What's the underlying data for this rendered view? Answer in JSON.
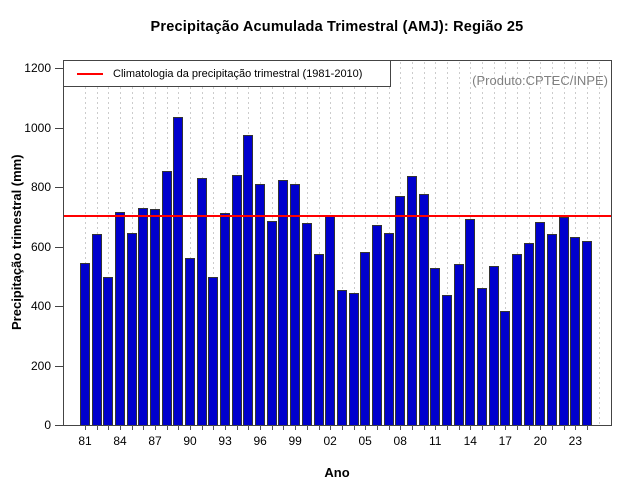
{
  "chart_data": {
    "type": "bar",
    "title": "Precipitação Acumulada Trimestral (AMJ): Região 25",
    "xlabel": "Ano",
    "ylabel": "Precipitação trimestral (mm)",
    "source_note": "(Produto:CPTEC/INPE)",
    "legend_position": "topleft",
    "legend": [
      {
        "label": "Climatologia da precipitação trimestral (1981-2010)",
        "color": "#FF0000",
        "type": "line"
      }
    ],
    "grid": "vertical-dashed",
    "ylim": [
      0,
      1200
    ],
    "yticks": [
      0,
      200,
      400,
      600,
      800,
      1000,
      1200
    ],
    "xtick_labels": [
      "81",
      "84",
      "87",
      "90",
      "93",
      "96",
      "99",
      "02",
      "05",
      "08",
      "11",
      "14",
      "17",
      "20",
      "23"
    ],
    "categories": [
      "81",
      "82",
      "83",
      "84",
      "85",
      "86",
      "87",
      "88",
      "89",
      "90",
      "91",
      "92",
      "93",
      "94",
      "95",
      "96",
      "97",
      "98",
      "99",
      "00",
      "01",
      "02",
      "03",
      "04",
      "05",
      "06",
      "07",
      "08",
      "09",
      "10",
      "11",
      "12",
      "13",
      "14",
      "15",
      "16",
      "17",
      "18",
      "19",
      "20",
      "21",
      "22",
      "23",
      "24"
    ],
    "values": [
      545,
      641,
      497,
      715,
      647,
      731,
      726,
      855,
      1034,
      563,
      831,
      497,
      713,
      841,
      974,
      809,
      686,
      822,
      809,
      680,
      574,
      701,
      455,
      445,
      583,
      672,
      646,
      771,
      836,
      778,
      527,
      437,
      542,
      694,
      462,
      534,
      383,
      576,
      611,
      682,
      642,
      698,
      631,
      618
    ],
    "climatology_line": {
      "value": 701,
      "color": "#FF0000"
    },
    "bar_color": "#0000CD",
    "bar_border_color": "#333333",
    "grid_color": "#CCCCCC",
    "source_note_color": "#808080"
  }
}
